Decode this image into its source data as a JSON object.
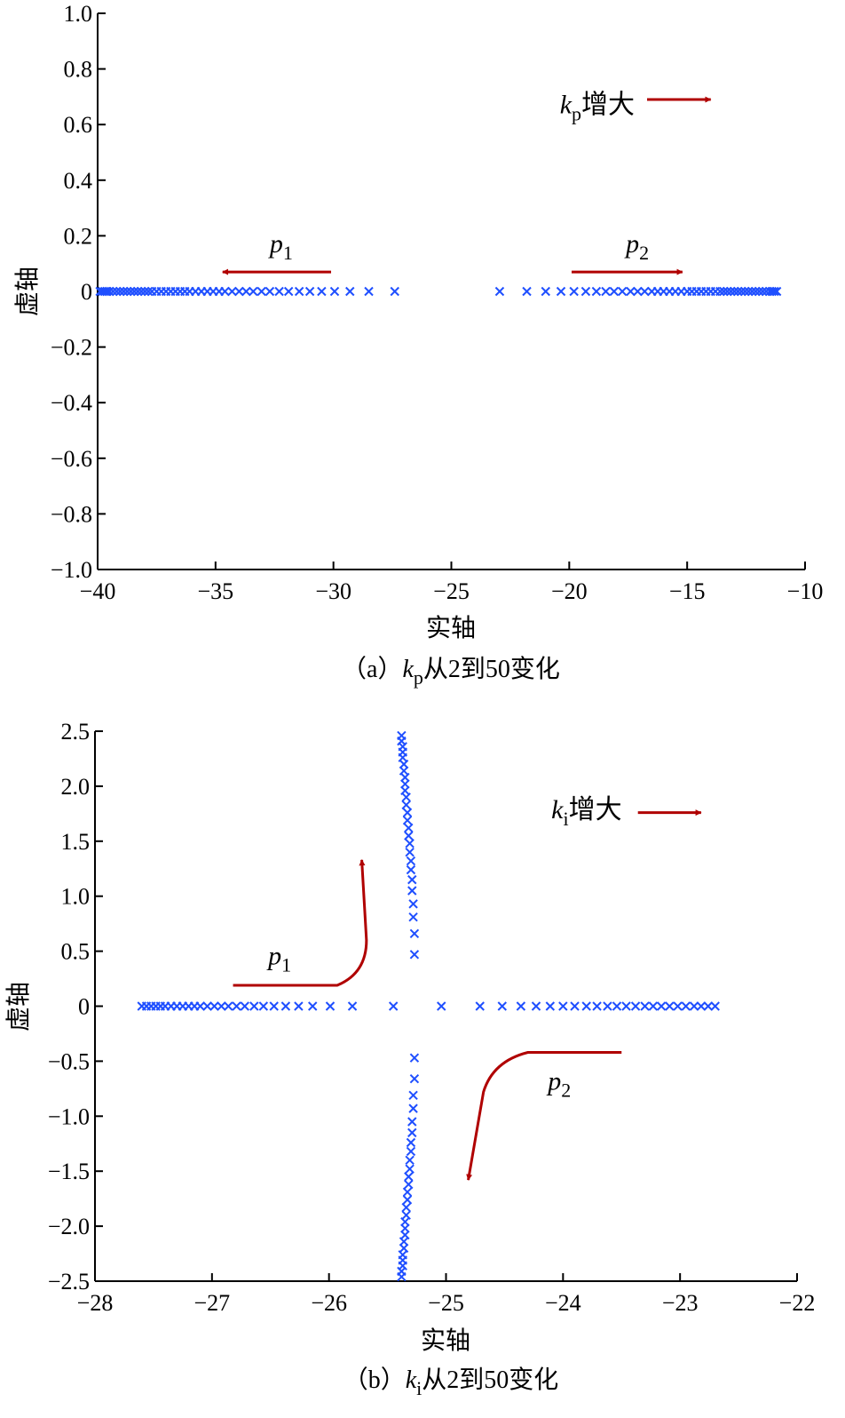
{
  "colors": {
    "points": "#1f4fff",
    "arrows": "#b00000",
    "axes": "#000000"
  },
  "chart_data": [
    {
      "type": "scatter",
      "marker": "x",
      "caption": {
        "prefix": "（a）",
        "var": "k",
        "sub": "p",
        "suffix": "从2到50变化"
      },
      "xlabel": "实轴",
      "ylabel": "虚轴",
      "xlim": [
        -40,
        -10
      ],
      "ylim": [
        -1.0,
        1.0
      ],
      "xticks": [
        -40,
        -35,
        -30,
        -25,
        -20,
        -15,
        -10
      ],
      "xtick_labels": [
        "−40",
        "−35",
        "−30",
        "−25",
        "−20",
        "−15",
        "−10"
      ],
      "yticks": [
        1.0,
        0.8,
        0.6,
        0.4,
        0.2,
        0,
        -0.2,
        -0.4,
        -0.6,
        -0.8,
        -1.0
      ],
      "ytick_labels": [
        "1.0",
        "0.8",
        "0.6",
        "0.4",
        "0.2",
        "0",
        "−0.2",
        "−0.4",
        "−0.6",
        "−0.8",
        "−1.0"
      ],
      "grid": false,
      "series": [
        {
          "name": "p1",
          "x": [
            -27.4,
            -28.5,
            -29.3,
            -29.95,
            -30.5,
            -31.0,
            -31.45,
            -31.9,
            -32.3,
            -32.7,
            -33.05,
            -33.4,
            -33.7,
            -34.0,
            -34.3,
            -34.6,
            -34.85,
            -35.1,
            -35.35,
            -35.6,
            -35.85,
            -36.1,
            -36.3,
            -36.5,
            -36.7,
            -36.9,
            -37.1,
            -37.3,
            -37.5,
            -37.7,
            -37.85,
            -38.0,
            -38.15,
            -38.3,
            -38.45,
            -38.6,
            -38.75,
            -38.9,
            -39.05,
            -39.2,
            -39.35,
            -39.5,
            -39.6,
            -39.7,
            -39.8,
            -39.9
          ],
          "y": "all 0"
        },
        {
          "name": "p2",
          "x": [
            -22.95,
            -21.8,
            -21.0,
            -20.35,
            -19.8,
            -19.3,
            -18.85,
            -18.45,
            -18.1,
            -17.75,
            -17.4,
            -17.1,
            -16.8,
            -16.5,
            -16.25,
            -16.0,
            -15.75,
            -15.5,
            -15.25,
            -15.0,
            -14.8,
            -14.6,
            -14.4,
            -14.2,
            -14.0,
            -13.8,
            -13.6,
            -13.45,
            -13.3,
            -13.15,
            -13.0,
            -12.85,
            -12.7,
            -12.55,
            -12.4,
            -12.25,
            -12.1,
            -11.95,
            -11.8,
            -11.65,
            -11.5,
            -11.4,
            -11.3,
            -11.2
          ],
          "y": "all 0"
        }
      ],
      "annotations": [
        {
          "text_var": "p",
          "text_sub": "1",
          "at": [
            -32.7,
            0.14
          ],
          "arrow": [
            [
              -30.1,
              0.07
            ],
            [
              -34.7,
              0.07
            ]
          ]
        },
        {
          "text_var": "p",
          "text_sub": "2",
          "at": [
            -17.6,
            0.14
          ],
          "arrow": [
            [
              -19.9,
              0.07
            ],
            [
              -15.2,
              0.07
            ]
          ]
        },
        {
          "text_var": "k",
          "text_sub": "p",
          "text_suffix": "增大",
          "at": [
            -20.4,
            0.64
          ],
          "arrow": [
            [
              -16.7,
              0.69
            ],
            [
              -14.0,
              0.69
            ]
          ]
        }
      ]
    },
    {
      "type": "scatter",
      "marker": "x",
      "caption": {
        "prefix": "（b）",
        "var": "k",
        "sub": "i",
        "suffix": "从2到50变化"
      },
      "xlabel": "实轴",
      "ylabel": "虚轴",
      "xlim": [
        -28,
        -22
      ],
      "ylim": [
        -2.5,
        2.5
      ],
      "xticks": [
        -28,
        -27,
        -26,
        -25,
        -24,
        -23,
        -22
      ],
      "xtick_labels": [
        "−28",
        "−27",
        "−26",
        "−25",
        "−24",
        "−23",
        "−22"
      ],
      "yticks": [
        2.5,
        2.0,
        1.5,
        1.0,
        0.5,
        0,
        -0.5,
        -1.0,
        -1.5,
        -2.0,
        -2.5
      ],
      "ytick_labels": [
        "2.5",
        "2.0",
        "1.5",
        "1.0",
        "0.5",
        "0",
        "−0.5",
        "−1.0",
        "−1.5",
        "−2.0",
        "−2.5"
      ],
      "grid": false,
      "series": [
        {
          "name": "p1-real",
          "x": [
            -25.45,
            -25.8,
            -25.99,
            -26.14,
            -26.26,
            -26.37,
            -26.47,
            -26.56,
            -26.64,
            -26.72,
            -26.79,
            -26.86,
            -26.92,
            -26.98,
            -27.04,
            -27.1,
            -27.15,
            -27.2,
            -27.25,
            -27.3,
            -27.35,
            -27.4,
            -27.44,
            -27.48,
            -27.52,
            -27.56,
            -27.6
          ],
          "y": "all 0"
        },
        {
          "name": "p2-real",
          "x": [
            -25.04,
            -24.71,
            -24.52,
            -24.36,
            -24.23,
            -24.11,
            -24.0,
            -23.9,
            -23.8,
            -23.71,
            -23.62,
            -23.54,
            -23.46,
            -23.38,
            -23.3,
            -23.23,
            -23.16,
            -23.09,
            -23.02,
            -22.95,
            -22.88,
            -22.82,
            -22.76,
            -22.7
          ],
          "y": "all 0"
        },
        {
          "name": "complex-upper",
          "x": [
            -25.27,
            -25.27,
            -25.28,
            -25.28,
            -25.29,
            -25.29,
            -25.3,
            -25.3,
            -25.31,
            -25.31,
            -25.32,
            -25.32,
            -25.33,
            -25.33,
            -25.34,
            -25.34,
            -25.35,
            -25.35,
            -25.35,
            -25.36,
            -25.36,
            -25.37,
            -25.37,
            -25.37,
            -25.38,
            -25.38
          ],
          "y": [
            0.47,
            0.66,
            0.81,
            0.93,
            1.05,
            1.15,
            1.24,
            1.32,
            1.4,
            1.48,
            1.55,
            1.62,
            1.69,
            1.76,
            1.83,
            1.9,
            1.96,
            2.02,
            2.08,
            2.14,
            2.2,
            2.26,
            2.31,
            2.36,
            2.41,
            2.46
          ]
        },
        {
          "name": "complex-lower",
          "mirror_of": "complex-upper"
        }
      ],
      "annotations": [
        {
          "text_var": "p",
          "text_sub": "1",
          "at": [
            -26.52,
            0.38
          ],
          "curve": [
            [
              -26.82,
              0.19
            ],
            [
              -25.93,
              0.19
            ],
            [
              -25.68,
              0.3
            ],
            [
              -25.68,
              0.6
            ],
            [
              -25.72,
              1.33
            ]
          ]
        },
        {
          "text_var": "p",
          "text_sub": "2",
          "at": [
            -24.13,
            -0.76
          ],
          "curve": [
            [
              -23.5,
              -0.42
            ],
            [
              -24.3,
              -0.42
            ],
            [
              -24.6,
              -0.5
            ],
            [
              -24.68,
              -0.78
            ],
            [
              -24.81,
              -1.58
            ]
          ]
        },
        {
          "text_var": "k",
          "text_sub": "i",
          "text_suffix": "增大",
          "at": [
            -24.1,
            1.71
          ],
          "arrow": [
            [
              -23.36,
              1.76
            ],
            [
              -22.82,
              1.76
            ]
          ]
        }
      ]
    }
  ]
}
